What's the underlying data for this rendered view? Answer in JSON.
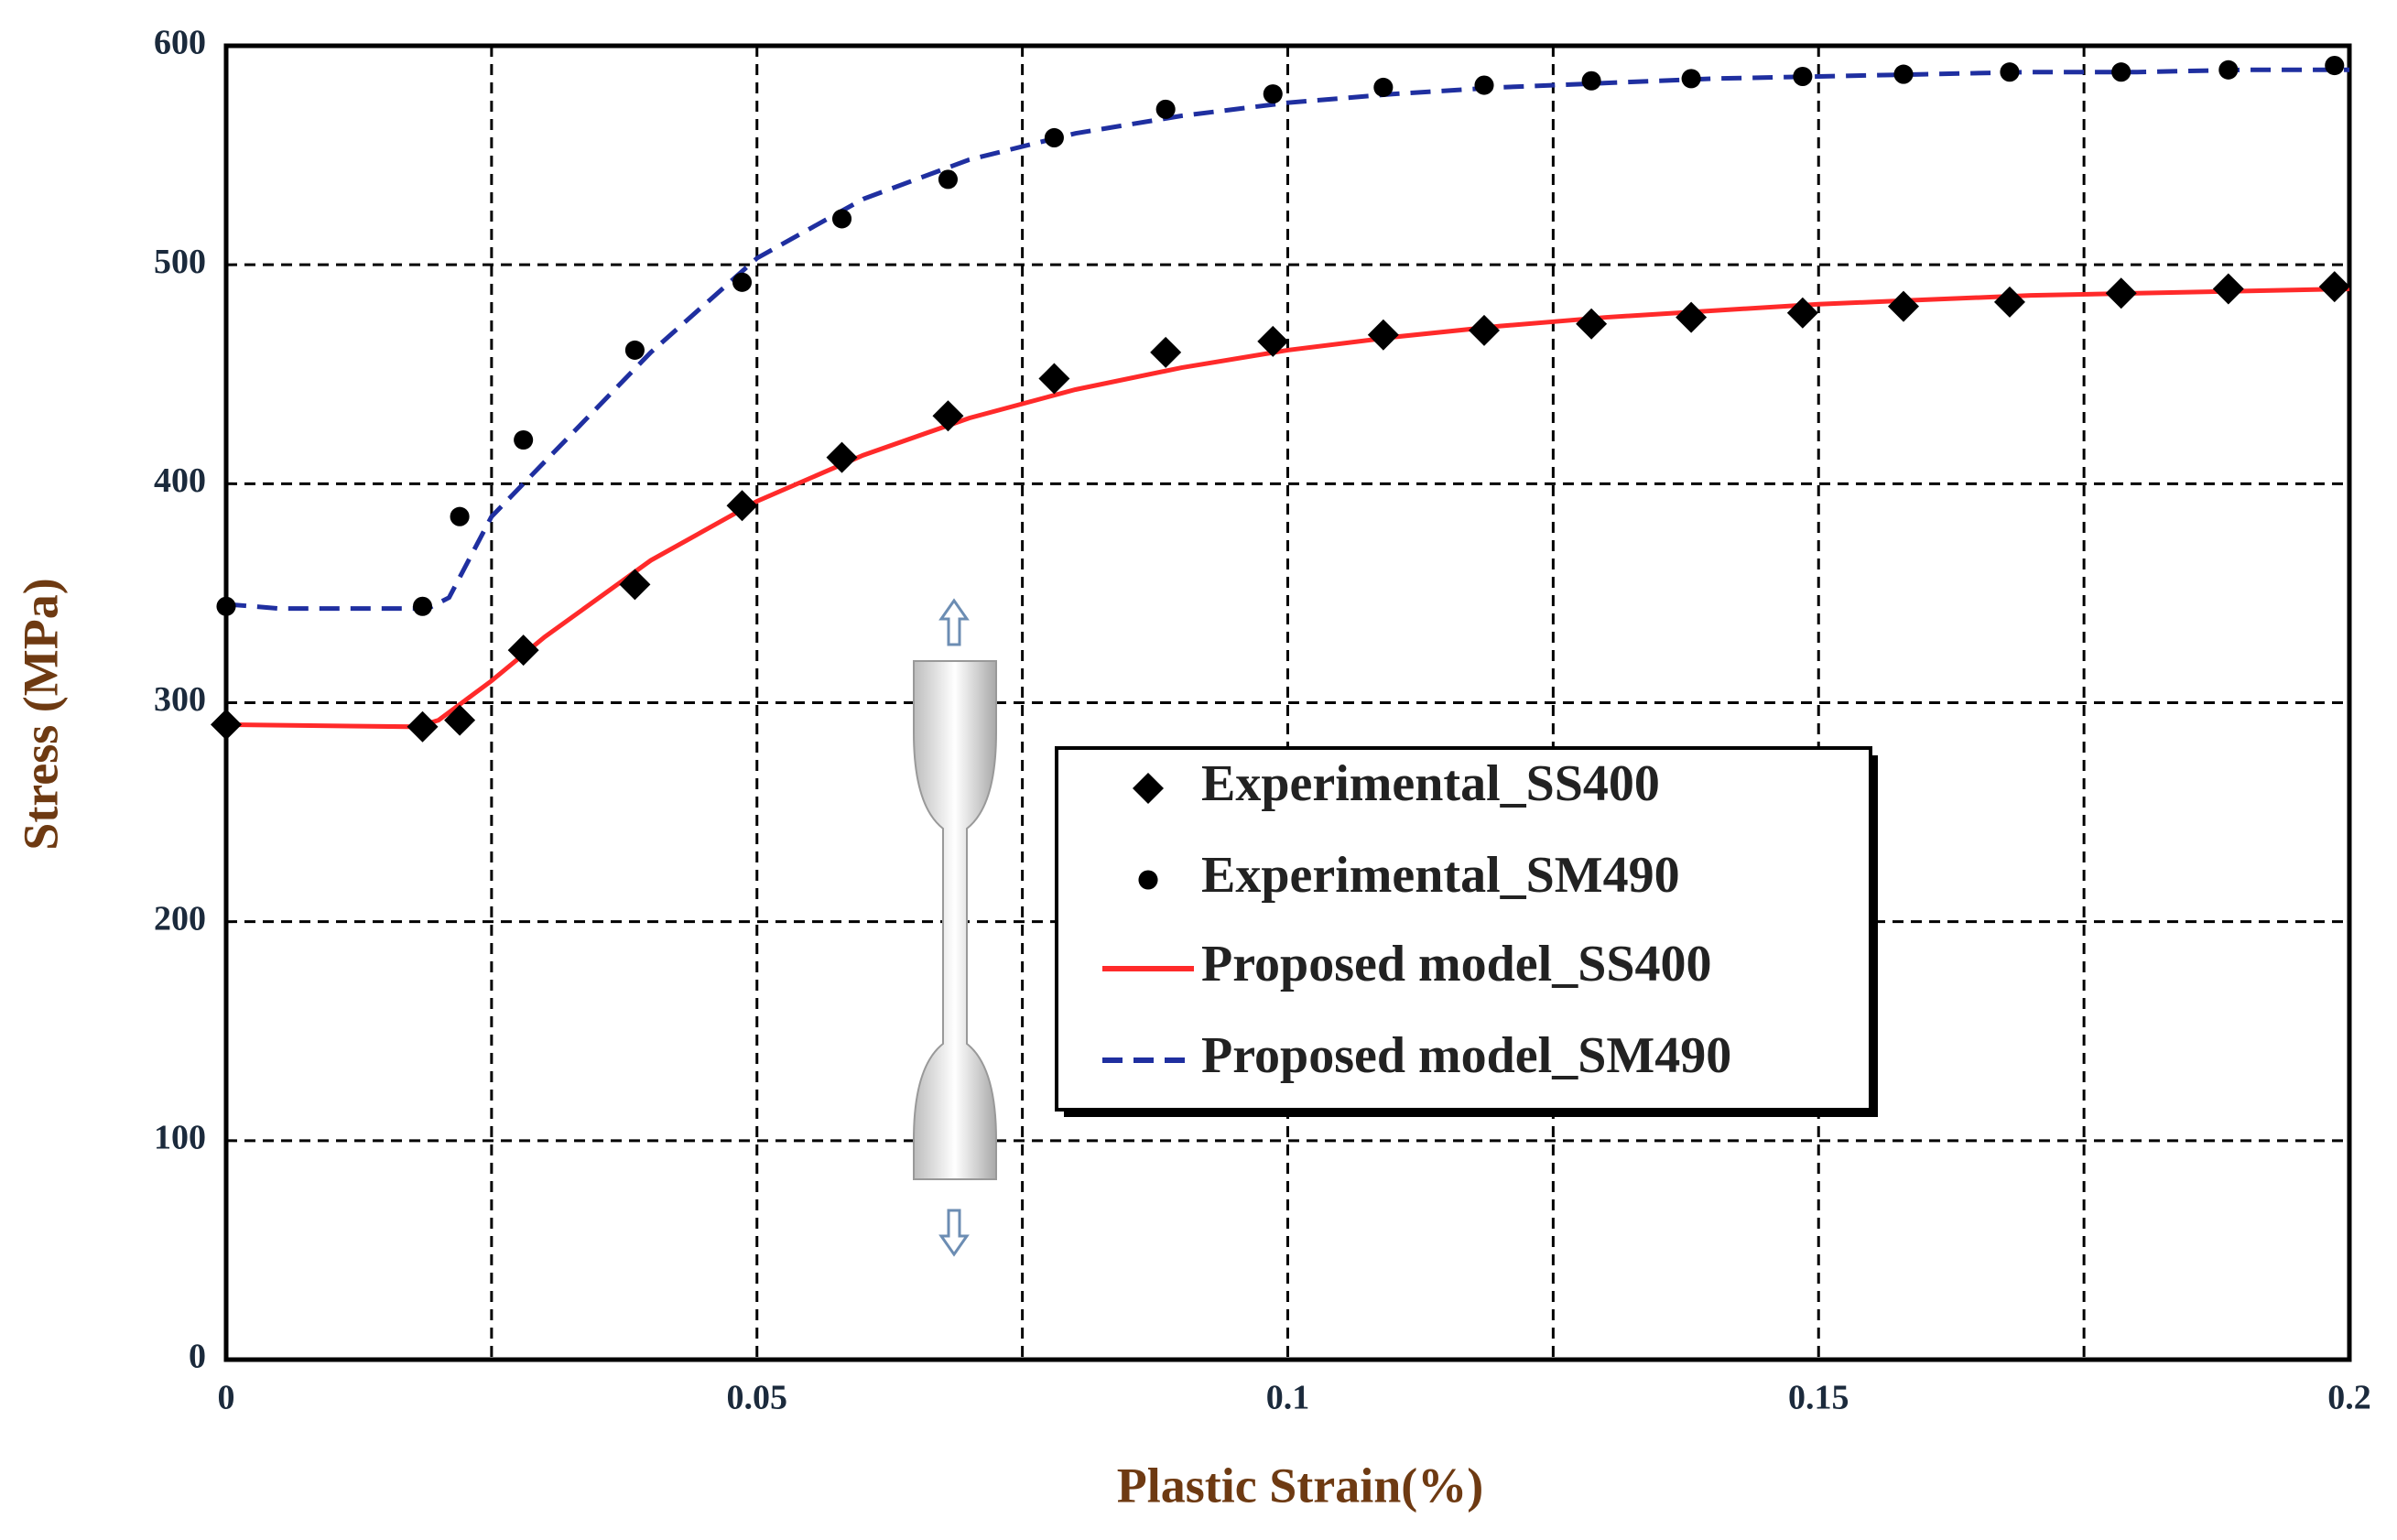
{
  "chart_data": {
    "type": "line",
    "xlabel": "Plastic Strain(%)",
    "ylabel": "Stress (MPa)",
    "xlim": [
      0,
      0.2
    ],
    "ylim": [
      0,
      600
    ],
    "xticks": [
      0,
      0.05,
      0.1,
      0.15,
      0.2
    ],
    "x_minor_ticks": [
      0.025,
      0.075,
      0.125,
      0.175
    ],
    "yticks": [
      0,
      100,
      200,
      300,
      400,
      500,
      600
    ],
    "grid": true,
    "legend": "center",
    "series": [
      {
        "name": "Experimental_SS400",
        "color": "#000000",
        "marker": "diamond",
        "x": [
          0,
          0.0185,
          0.022,
          0.028,
          0.0385,
          0.0486,
          0.058,
          0.068,
          0.078,
          0.0885,
          0.0986,
          0.109,
          0.1185,
          0.1286,
          0.138,
          0.1485,
          0.158,
          0.168,
          0.1785,
          0.1886,
          0.1986
        ],
        "values": [
          290,
          289,
          292,
          324,
          354,
          390,
          412,
          431,
          448,
          460,
          465,
          468,
          470,
          473,
          476,
          478,
          481,
          483,
          487,
          489,
          490
        ]
      },
      {
        "name": "Experimental_SM490",
        "color": "#000000",
        "marker": "circle",
        "x": [
          0,
          0.0185,
          0.022,
          0.028,
          0.0385,
          0.0486,
          0.058,
          0.068,
          0.078,
          0.0885,
          0.0986,
          0.109,
          0.1185,
          0.1286,
          0.138,
          0.1485,
          0.158,
          0.168,
          0.1785,
          0.1886,
          0.1986
        ],
        "values": [
          344,
          344,
          385,
          420,
          461,
          492,
          521,
          539,
          558,
          571,
          578,
          581,
          582,
          584,
          585,
          586,
          587,
          588,
          588,
          589,
          591
        ]
      },
      {
        "name": "Proposed model_SS400",
        "color": "#ff2a2a",
        "line": "solid",
        "x": [
          0,
          0.018,
          0.02,
          0.025,
          0.03,
          0.04,
          0.05,
          0.06,
          0.07,
          0.08,
          0.09,
          0.1,
          0.11,
          0.12,
          0.13,
          0.14,
          0.15,
          0.16,
          0.17,
          0.18,
          0.19,
          0.2
        ],
        "values": [
          290,
          289,
          292,
          310,
          330,
          365,
          392,
          413,
          430,
          443,
          453,
          461,
          467,
          472,
          476,
          479,
          482,
          484,
          486,
          487,
          488,
          489
        ]
      },
      {
        "name": "Proposed model_SM490",
        "color": "#1f2fa0",
        "line": "dashed",
        "x": [
          0,
          0.005,
          0.019,
          0.021,
          0.025,
          0.03,
          0.04,
          0.05,
          0.06,
          0.07,
          0.08,
          0.09,
          0.1,
          0.11,
          0.12,
          0.13,
          0.14,
          0.15,
          0.16,
          0.17,
          0.18,
          0.19,
          0.2
        ],
        "values": [
          345,
          343,
          343,
          348,
          385,
          410,
          460,
          503,
          530,
          548,
          560,
          568,
          574,
          578,
          581,
          583,
          585,
          586,
          587,
          588,
          588,
          589,
          589
        ]
      }
    ]
  }
}
